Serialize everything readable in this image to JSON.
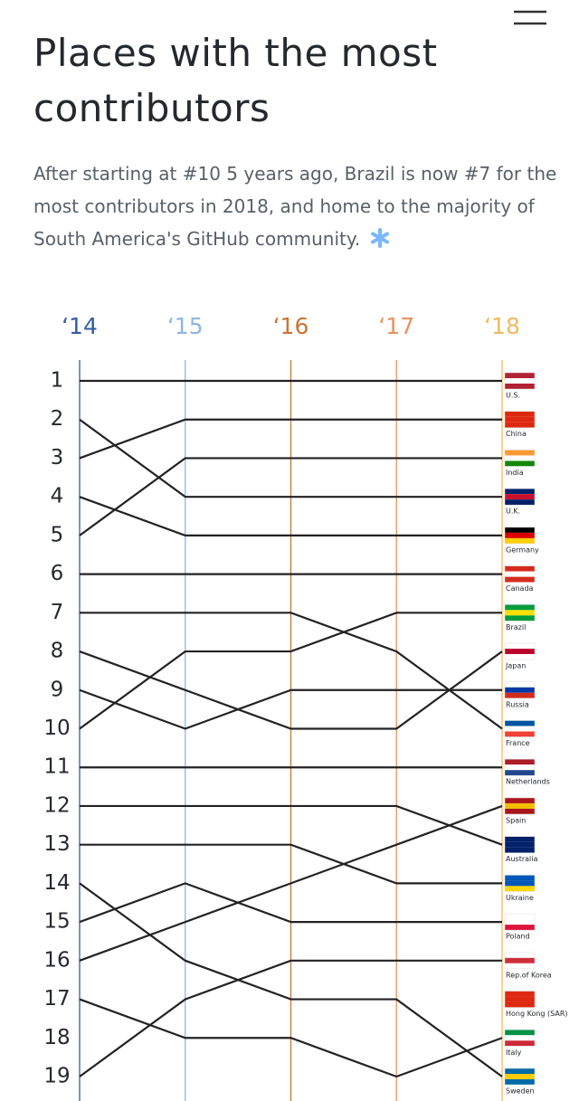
{
  "header": {
    "title": "Places with the most contributors",
    "subtitle": "After starting at #10 5 years ago, Brazil is now #7 for the most contributors in 2018, and home to the majority of South America's GitHub community."
  },
  "chart_data": {
    "type": "bump",
    "x": [
      "‘14",
      "‘15",
      "‘16",
      "‘17",
      "‘18"
    ],
    "x_colors": [
      "#2f5ea6",
      "#8cb6e2",
      "#c97533",
      "#e8925a",
      "#f0b95e"
    ],
    "ylim": [
      1,
      19
    ],
    "inverted": true,
    "yticks": [
      1,
      2,
      3,
      4,
      5,
      6,
      7,
      8,
      9,
      10,
      11,
      12,
      13,
      14,
      15,
      16,
      17,
      18,
      19
    ],
    "line_color": "#222222",
    "series": [
      {
        "name": "U.S.",
        "values": [
          1,
          1,
          1,
          1,
          1
        ]
      },
      {
        "name": "China",
        "values": [
          3,
          2,
          2,
          2,
          2
        ]
      },
      {
        "name": "India",
        "values": [
          5,
          3,
          3,
          3,
          3
        ]
      },
      {
        "name": "U.K.",
        "values": [
          2,
          4,
          4,
          4,
          4
        ]
      },
      {
        "name": "Germany",
        "values": [
          4,
          5,
          5,
          5,
          5
        ]
      },
      {
        "name": "Canada",
        "values": [
          6,
          6,
          6,
          6,
          6
        ]
      },
      {
        "name": "Brazil",
        "values": [
          10,
          8,
          8,
          7,
          7
        ]
      },
      {
        "name": "Japan",
        "values": [
          8,
          9,
          10,
          10,
          8
        ]
      },
      {
        "name": "Russia",
        "values": [
          9,
          10,
          9,
          9,
          9
        ]
      },
      {
        "name": "France",
        "values": [
          7,
          7,
          7,
          8,
          10
        ]
      },
      {
        "name": "Netherlands",
        "values": [
          11,
          11,
          11,
          11,
          11
        ]
      },
      {
        "name": "Spain",
        "values": [
          16,
          15,
          14,
          13,
          12
        ]
      },
      {
        "name": "Australia",
        "values": [
          12,
          12,
          12,
          12,
          13
        ]
      },
      {
        "name": "Ukraine",
        "values": [
          13,
          13,
          13,
          14,
          14
        ]
      },
      {
        "name": "Poland",
        "values": [
          15,
          14,
          15,
          15,
          15
        ]
      },
      {
        "name": "Rep.of Korea",
        "values": [
          19,
          17,
          16,
          16,
          16
        ]
      },
      {
        "name": "Hong Kong (SAR)",
        "values": [
          null,
          null,
          null,
          null,
          17
        ]
      },
      {
        "name": "Italy",
        "values": [
          17,
          18,
          18,
          19,
          18
        ]
      },
      {
        "name": "Sweden",
        "values": [
          14,
          16,
          17,
          17,
          19
        ]
      }
    ]
  }
}
